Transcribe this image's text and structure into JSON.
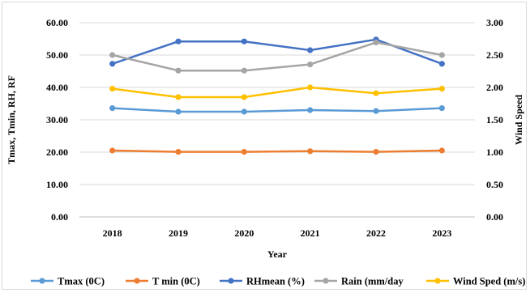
{
  "chart_data": {
    "type": "line",
    "title": "",
    "xlabel": "Year",
    "ylabel": "Tmax, Tmin, RH, RF",
    "y2label": "Wind Speed",
    "categories": [
      "2018",
      "2019",
      "2020",
      "2021",
      "2022",
      "2023"
    ],
    "ylim": [
      0,
      60
    ],
    "y_ticks": [
      "0.00",
      "10.00",
      "20.00",
      "30.00",
      "40.00",
      "50.00",
      "60.00"
    ],
    "y2lim": [
      0,
      3
    ],
    "y2_ticks": [
      "0.00",
      "0.50",
      "1.00",
      "1.50",
      "2.00",
      "2.50",
      "3.00"
    ],
    "grid": "horizontal",
    "legend_position": "bottom",
    "series": [
      {
        "name": "Tmax (0C)",
        "axis": "left",
        "color": "#5B9BD5",
        "values": [
          33.6,
          32.5,
          32.5,
          33.0,
          32.7,
          33.6
        ]
      },
      {
        "name": "T min (0C)",
        "axis": "left",
        "color": "#ED7D31",
        "values": [
          20.5,
          20.1,
          20.1,
          20.3,
          20.1,
          20.5
        ]
      },
      {
        "name": "RHmean (%)",
        "axis": "left",
        "color": "#4472C4",
        "values": [
          47.3,
          54.2,
          54.2,
          51.5,
          54.8,
          47.3
        ]
      },
      {
        "name": "Rain (mm/day",
        "axis": "left",
        "color": "#A5A5A5",
        "values": [
          50.0,
          45.2,
          45.2,
          47.1,
          53.9,
          50.0
        ]
      },
      {
        "name": "Wind Sped (m/s)",
        "axis": "right",
        "color": "#FFC000",
        "values": [
          1.98,
          1.85,
          1.85,
          2.0,
          1.91,
          1.98
        ]
      }
    ]
  }
}
